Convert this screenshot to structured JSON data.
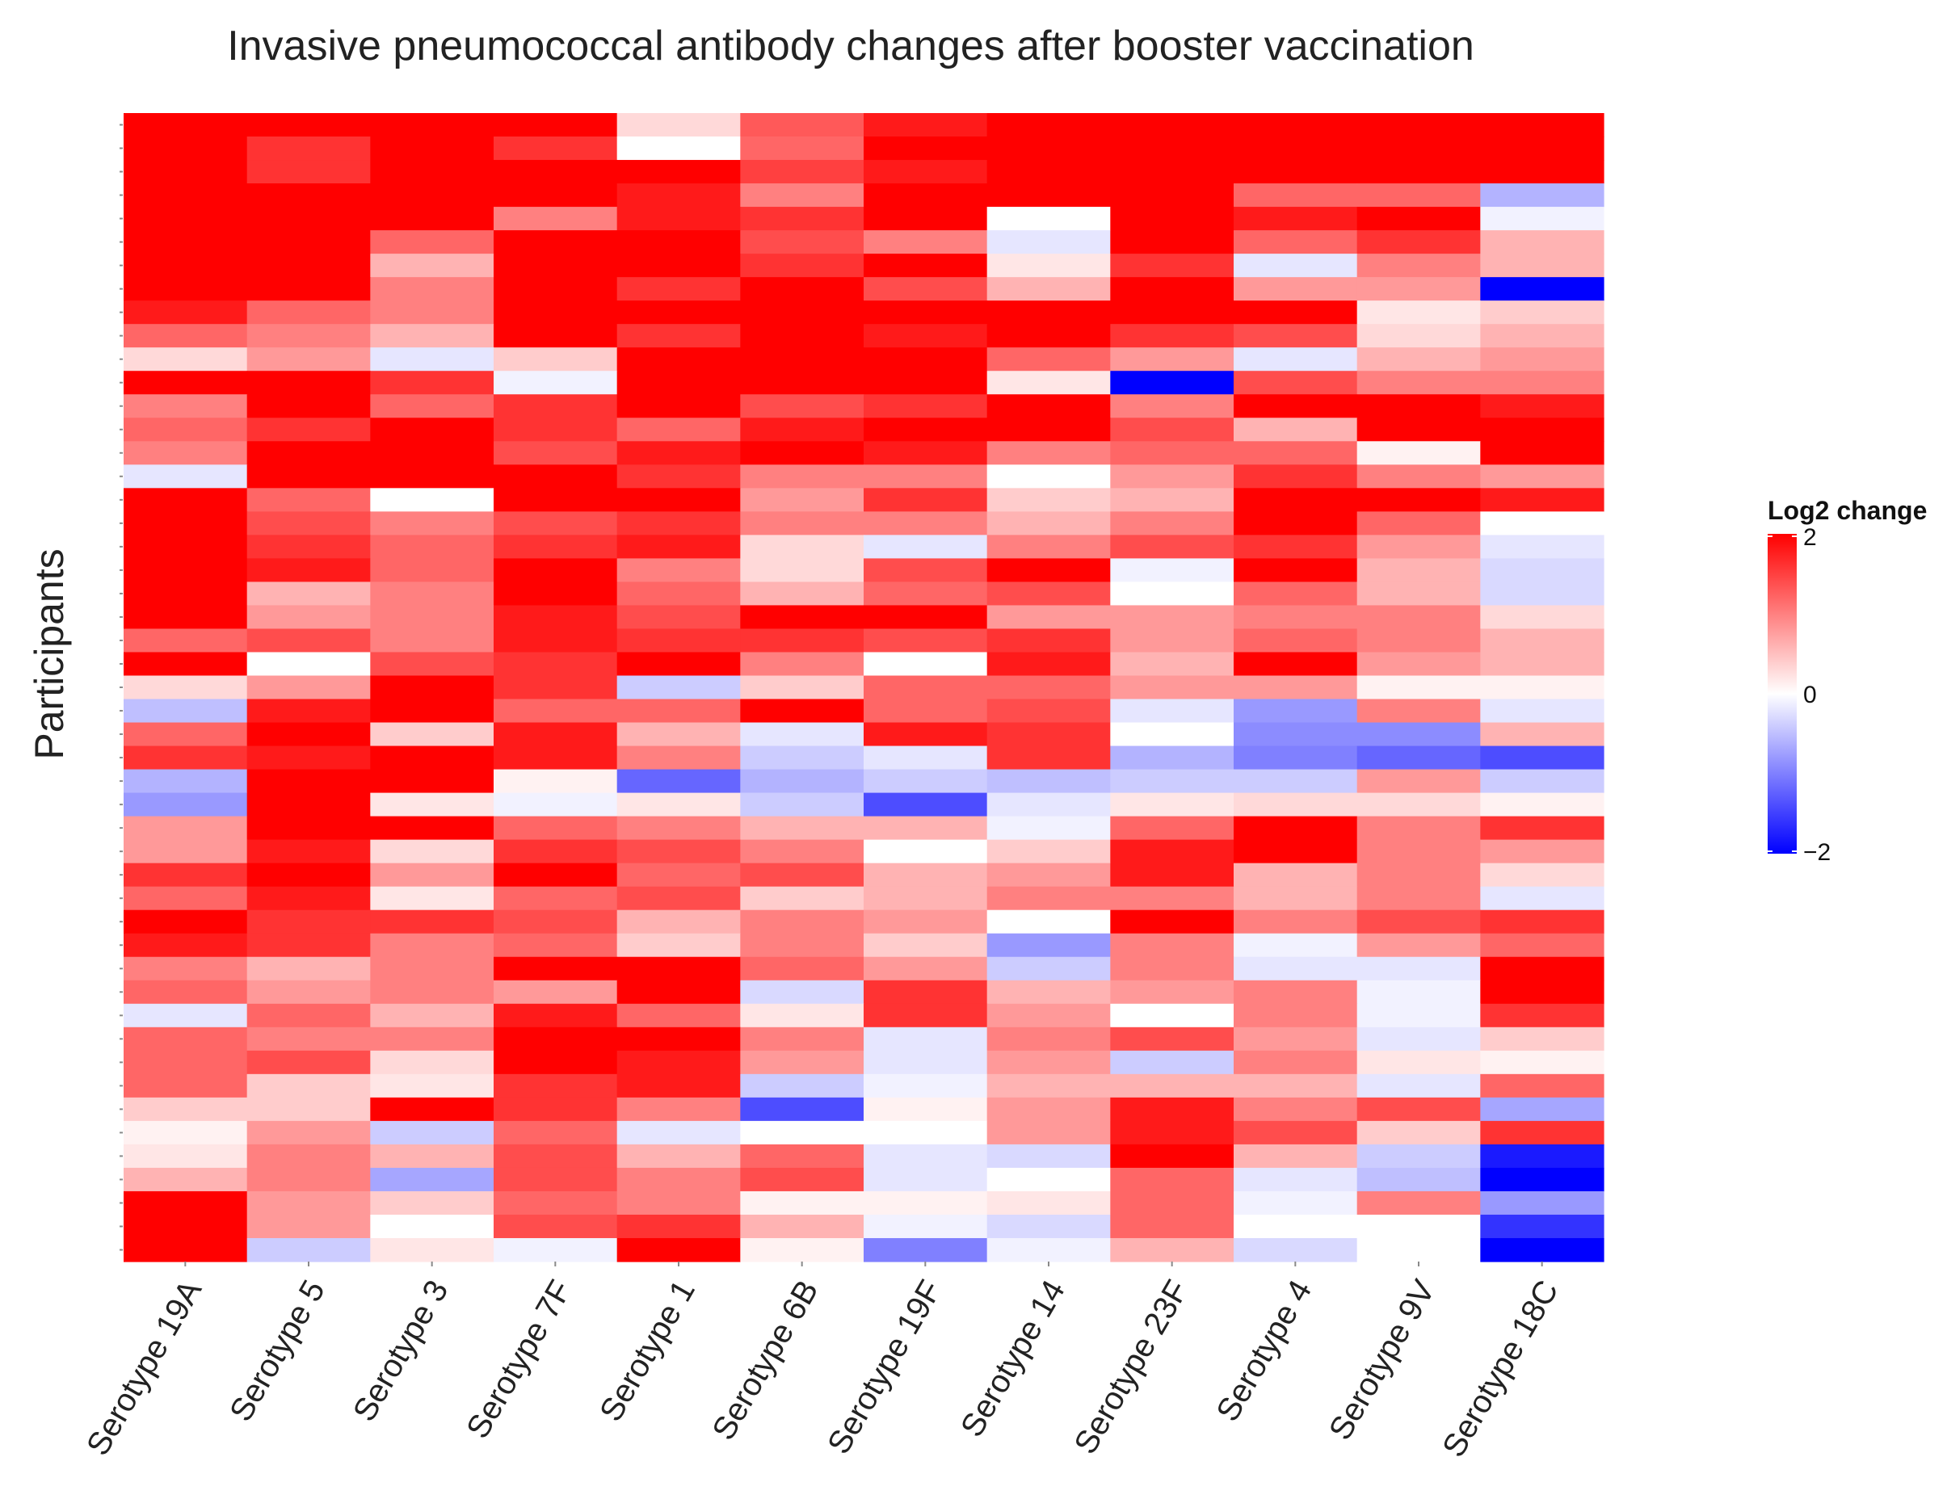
{
  "chart_data": {
    "type": "heatmap",
    "title": "Invasive pneumococcal antibody changes after booster vaccination",
    "xlabel": "",
    "ylabel": "Participants",
    "columns": [
      "Serotype 19A",
      "Serotype 5",
      "Serotype 3",
      "Serotype 7F",
      "Serotype 1",
      "Serotype 6B",
      "Serotype 19F",
      "Serotype 14",
      "Serotype 23F",
      "Serotype 4",
      "Serotype 9V",
      "Serotype 18C"
    ],
    "value_range": [
      -2,
      2
    ],
    "colorscale": {
      "low": "#0000ff",
      "mid": "#ffffff",
      "high": "#ff0000"
    },
    "legend": {
      "title": "Log2 change",
      "ticks": [
        "2",
        "0",
        "−2"
      ],
      "position": "right"
    },
    "values": [
      [
        2,
        2,
        2,
        2,
        0.3,
        1.3,
        1.8,
        2,
        2,
        2,
        2,
        2
      ],
      [
        2,
        1.6,
        2,
        1.6,
        0,
        1.2,
        2,
        2,
        2,
        2,
        2,
        2
      ],
      [
        2,
        1.6,
        2,
        2,
        2,
        1.5,
        1.8,
        2,
        2,
        2,
        2,
        2
      ],
      [
        2,
        2,
        2,
        2,
        1.8,
        1.0,
        2,
        2,
        2,
        1.2,
        1.2,
        -0.6
      ],
      [
        2,
        2,
        2,
        1.0,
        1.8,
        1.6,
        2,
        0,
        2,
        1.8,
        2,
        -0.1
      ],
      [
        2,
        2,
        1.2,
        2,
        2,
        1.4,
        1.0,
        -0.2,
        2,
        1.2,
        1.6,
        0.6
      ],
      [
        2,
        2,
        0.6,
        2,
        2,
        1.6,
        2,
        0.2,
        1.6,
        -0.2,
        1.0,
        0.6
      ],
      [
        2,
        2,
        1.0,
        2,
        1.6,
        2,
        1.4,
        0.6,
        2,
        0.8,
        0.8,
        -2
      ],
      [
        1.8,
        1.2,
        1.0,
        2,
        2,
        2,
        2,
        2,
        2,
        2,
        0.2,
        0.4
      ],
      [
        1.2,
        1.0,
        0.6,
        2,
        1.6,
        2,
        1.8,
        2,
        1.6,
        1.4,
        0.3,
        0.6
      ],
      [
        0.3,
        0.8,
        -0.2,
        0.4,
        2,
        2,
        2,
        1.2,
        0.8,
        -0.2,
        0.6,
        0.8
      ],
      [
        2,
        2,
        1.6,
        -0.1,
        2,
        2,
        2,
        0.2,
        -2,
        1.4,
        1.0,
        1.0
      ],
      [
        1.0,
        2,
        1.2,
        1.6,
        2,
        1.4,
        1.6,
        2,
        1.0,
        2,
        2,
        1.8
      ],
      [
        1.2,
        1.6,
        2,
        1.6,
        1.2,
        1.8,
        2,
        2,
        1.4,
        0.6,
        2,
        2
      ],
      [
        1.0,
        2,
        2,
        1.4,
        1.8,
        2,
        1.8,
        1.0,
        1.2,
        1.2,
        0.1,
        2
      ],
      [
        -0.2,
        2,
        2,
        2,
        1.6,
        1.0,
        1.0,
        0,
        0.8,
        1.6,
        1.0,
        0.8
      ],
      [
        2,
        1.2,
        0,
        2,
        2,
        0.8,
        1.6,
        0.4,
        0.6,
        2,
        2,
        1.8
      ],
      [
        2,
        1.4,
        1.0,
        1.4,
        1.6,
        1.0,
        1.0,
        0.6,
        1.0,
        2,
        1.2,
        0
      ],
      [
        2,
        1.6,
        1.2,
        1.6,
        1.8,
        0.3,
        -0.2,
        1.0,
        1.4,
        1.6,
        0.8,
        -0.2
      ],
      [
        2,
        1.8,
        1.2,
        2,
        1.0,
        0.3,
        1.4,
        2,
        -0.1,
        2,
        0.6,
        -0.3
      ],
      [
        2,
        0.6,
        1.0,
        2,
        1.2,
        0.6,
        1.2,
        1.4,
        0,
        1.2,
        0.6,
        -0.3
      ],
      [
        2,
        0.8,
        1.0,
        1.8,
        1.4,
        2,
        2,
        0.8,
        0.8,
        1.0,
        1.0,
        0.3
      ],
      [
        1.2,
        1.4,
        1.0,
        1.8,
        1.6,
        1.6,
        1.4,
        1.6,
        0.8,
        1.2,
        1.0,
        0.6
      ],
      [
        2,
        0,
        1.4,
        1.6,
        2,
        1.0,
        0,
        1.8,
        0.6,
        2,
        0.8,
        0.6
      ],
      [
        0.3,
        0.8,
        2,
        1.6,
        -0.4,
        0.4,
        1.2,
        1.2,
        0.8,
        0.8,
        0.1,
        0.1
      ],
      [
        -0.5,
        1.8,
        2,
        1.2,
        1.2,
        2,
        1.2,
        1.4,
        -0.2,
        -0.8,
        1.0,
        -0.2
      ],
      [
        1.2,
        2,
        0.4,
        1.8,
        0.6,
        -0.2,
        1.8,
        1.6,
        0,
        -0.9,
        -0.9,
        0.6
      ],
      [
        1.6,
        1.8,
        2,
        1.8,
        1.0,
        -0.4,
        -0.2,
        1.6,
        -0.6,
        -1.0,
        -1.2,
        -1.4
      ],
      [
        -0.6,
        2,
        2,
        0.1,
        -1.2,
        -0.6,
        -0.4,
        -0.5,
        -0.4,
        -0.4,
        0.8,
        -0.4
      ],
      [
        -0.8,
        2,
        0.2,
        -0.1,
        0.2,
        -0.4,
        -1.4,
        -0.2,
        0.2,
        0.3,
        0.3,
        0.1
      ],
      [
        0.8,
        2,
        2,
        1.2,
        1.0,
        0.6,
        0.6,
        -0.1,
        1.2,
        2,
        1.0,
        1.6
      ],
      [
        0.8,
        1.8,
        0.3,
        1.6,
        1.4,
        1.0,
        0,
        0.4,
        1.8,
        2,
        1.0,
        0.8
      ],
      [
        1.6,
        2,
        0.8,
        2,
        1.2,
        1.4,
        0.6,
        0.8,
        1.8,
        0.6,
        1.0,
        0.3
      ],
      [
        1.2,
        1.8,
        0.2,
        1.2,
        1.4,
        0.4,
        0.6,
        1.0,
        1.0,
        0.6,
        1.0,
        -0.2
      ],
      [
        2,
        1.6,
        1.6,
        1.4,
        0.6,
        1.0,
        0.8,
        0,
        2,
        1.0,
        1.4,
        1.6
      ],
      [
        1.8,
        1.6,
        1.0,
        1.2,
        0.4,
        1.0,
        0.4,
        -0.8,
        1.0,
        -0.1,
        0.8,
        1.2
      ],
      [
        1.0,
        0.6,
        1.0,
        2,
        2,
        1.2,
        0.8,
        -0.4,
        1.0,
        -0.2,
        -0.2,
        2
      ],
      [
        1.2,
        0.8,
        1.0,
        0.8,
        2,
        -0.3,
        1.6,
        0.6,
        0.8,
        1.0,
        -0.1,
        2
      ],
      [
        -0.2,
        1.2,
        0.6,
        1.8,
        1.2,
        0.2,
        1.6,
        0.8,
        0,
        1.0,
        -0.1,
        1.6
      ],
      [
        1.2,
        1.0,
        1.0,
        2,
        2,
        1.0,
        -0.2,
        1.0,
        1.4,
        0.8,
        -0.2,
        0.4
      ],
      [
        1.2,
        1.4,
        0.3,
        2,
        1.8,
        0.8,
        -0.2,
        0.8,
        -0.4,
        1.0,
        0.2,
        0.1
      ],
      [
        1.2,
        0.4,
        0.2,
        1.6,
        1.8,
        -0.4,
        -0.1,
        0.6,
        0.6,
        0.6,
        -0.2,
        1.2
      ],
      [
        0.4,
        0.4,
        2,
        1.6,
        1.0,
        -1.4,
        0.1,
        0.8,
        1.8,
        1.0,
        1.4,
        -0.7
      ],
      [
        0.1,
        0.8,
        -0.4,
        1.2,
        -0.2,
        0,
        0,
        0.8,
        1.8,
        1.4,
        0.4,
        1.6
      ],
      [
        0.2,
        1.0,
        0.6,
        1.4,
        0.6,
        1.2,
        -0.2,
        -0.3,
        2,
        0.6,
        -0.4,
        -1.8
      ],
      [
        0.6,
        1.0,
        -0.7,
        1.4,
        1.0,
        1.4,
        -0.2,
        0,
        1.2,
        -0.2,
        -0.5,
        -2
      ],
      [
        2,
        0.8,
        0.4,
        1.2,
        1.0,
        0.1,
        0.1,
        0.2,
        1.2,
        -0.1,
        1.0,
        -0.8
      ],
      [
        2,
        0.8,
        0,
        1.4,
        1.6,
        0.6,
        -0.1,
        -0.3,
        1.2,
        0,
        0,
        -1.6
      ],
      [
        2,
        -0.4,
        0.2,
        -0.1,
        2,
        0.1,
        -1.0,
        -0.1,
        0.6,
        -0.3,
        0,
        -2
      ]
    ]
  }
}
